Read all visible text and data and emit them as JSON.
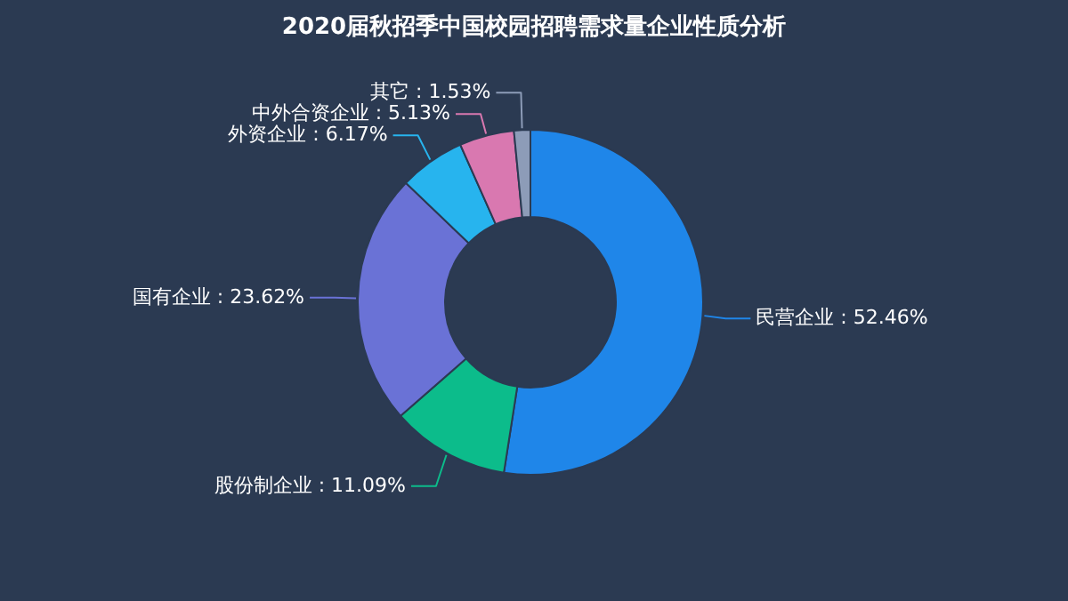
{
  "chart_data": {
    "type": "donut",
    "title": "2020届秋招季中国校园招聘需求量企业性质分析",
    "categories": [
      "民营企业",
      "股份制企业",
      "国有企业",
      "外资企业",
      "中外合资企业",
      "其它"
    ],
    "values": [
      52.46,
      11.09,
      23.62,
      6.17,
      5.13,
      1.53
    ],
    "value_labels": [
      "52.46%",
      "11.09%",
      "23.62%",
      "6.17%",
      "5.13%",
      "1.53%"
    ],
    "colors": [
      "#1f86e9",
      "#0cbc8b",
      "#6a72d6",
      "#27b4ee",
      "#d978b0",
      "#8d9cb8"
    ]
  }
}
